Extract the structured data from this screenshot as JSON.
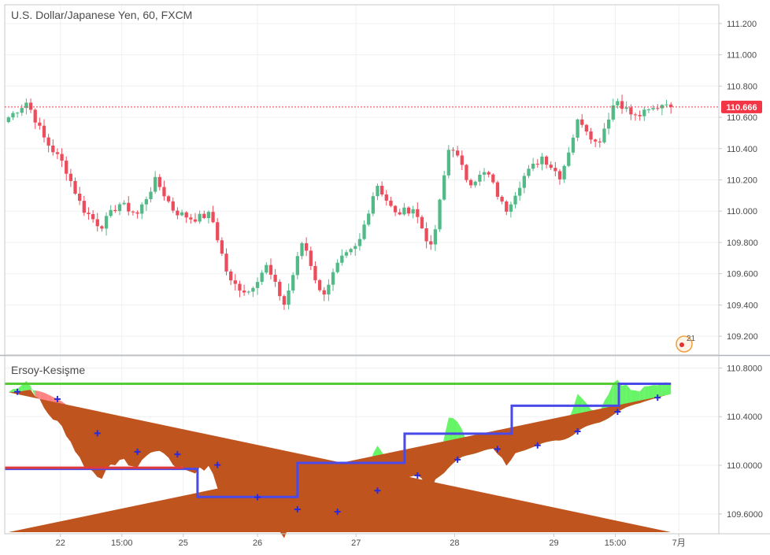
{
  "main_pane": {
    "title": "U.S. Dollar/Japanese Yen, 60, FXCM",
    "price_ticks": [
      "111.200",
      "111.000",
      "110.800",
      "110.600",
      "110.400",
      "110.200",
      "110.000",
      "109.800",
      "109.600",
      "109.400",
      "109.200"
    ],
    "last_price": "110.666",
    "badge_label": "21"
  },
  "indicator_pane": {
    "title": "Ersoy-Kesişme",
    "ticks": [
      "110.8000",
      "110.4000",
      "110.0000",
      "109.6000"
    ]
  },
  "time_axis": {
    "labels": [
      "22",
      "15:00",
      "25",
      "26",
      "27",
      "28",
      "29",
      "15:00",
      "7月"
    ]
  },
  "colors": {
    "up": "#53b987",
    "down": "#eb4d5c",
    "indicator_fill": "#c0541f",
    "indicator_red": "#ff6d6d",
    "indicator_green": "#4cf24c",
    "step_blue": "#4a4ae8",
    "cross_marker": "#2a2ad9",
    "last_price_badge": "#f23645"
  },
  "chart_data": [
    {
      "type": "candlestick",
      "title": "U.S. Dollar/Japanese Yen, 60, FXCM",
      "ylim": [
        109.08,
        111.32
      ],
      "y_ticks": [
        109.2,
        109.4,
        109.6,
        109.8,
        110.0,
        110.2,
        110.4,
        110.6,
        110.8,
        111.0,
        111.2
      ],
      "last_value": 110.666,
      "x_labels": [
        "22",
        "15:00",
        "25",
        "26",
        "27",
        "28",
        "29",
        "15:00",
        "7月"
      ],
      "anchors": [
        110.6,
        110.7,
        110.45,
        110.3,
        110.02,
        109.9,
        110.05,
        109.98,
        110.2,
        110.0,
        109.95,
        109.98,
        109.55,
        109.48,
        109.65,
        109.4,
        109.82,
        109.45,
        109.68,
        109.78,
        110.18,
        109.98,
        110.02,
        109.75,
        110.45,
        110.18,
        110.25,
        110.0,
        110.22,
        110.35,
        110.22,
        110.6,
        110.42,
        110.72,
        110.6,
        110.65,
        110.72
      ],
      "candle_count": 150
    },
    {
      "type": "area",
      "title": "Ersoy-Kesişme",
      "ylim": [
        109.45,
        110.9
      ],
      "y_ticks": [
        109.6,
        110.0,
        110.4,
        110.8
      ],
      "series": [
        {
          "kind": "smoothed-average-fill"
        },
        {
          "kind": "price-envelope"
        },
        {
          "kind": "step-line",
          "steps": [
            [
              0,
              109.97
            ],
            [
              0.27,
              109.74
            ],
            [
              0.41,
              110.02
            ],
            [
              0.56,
              110.26
            ],
            [
              0.71,
              110.49
            ],
            [
              0.86,
              110.67
            ]
          ]
        },
        {
          "kind": "upper-line",
          "start": 110.67
        }
      ]
    }
  ]
}
